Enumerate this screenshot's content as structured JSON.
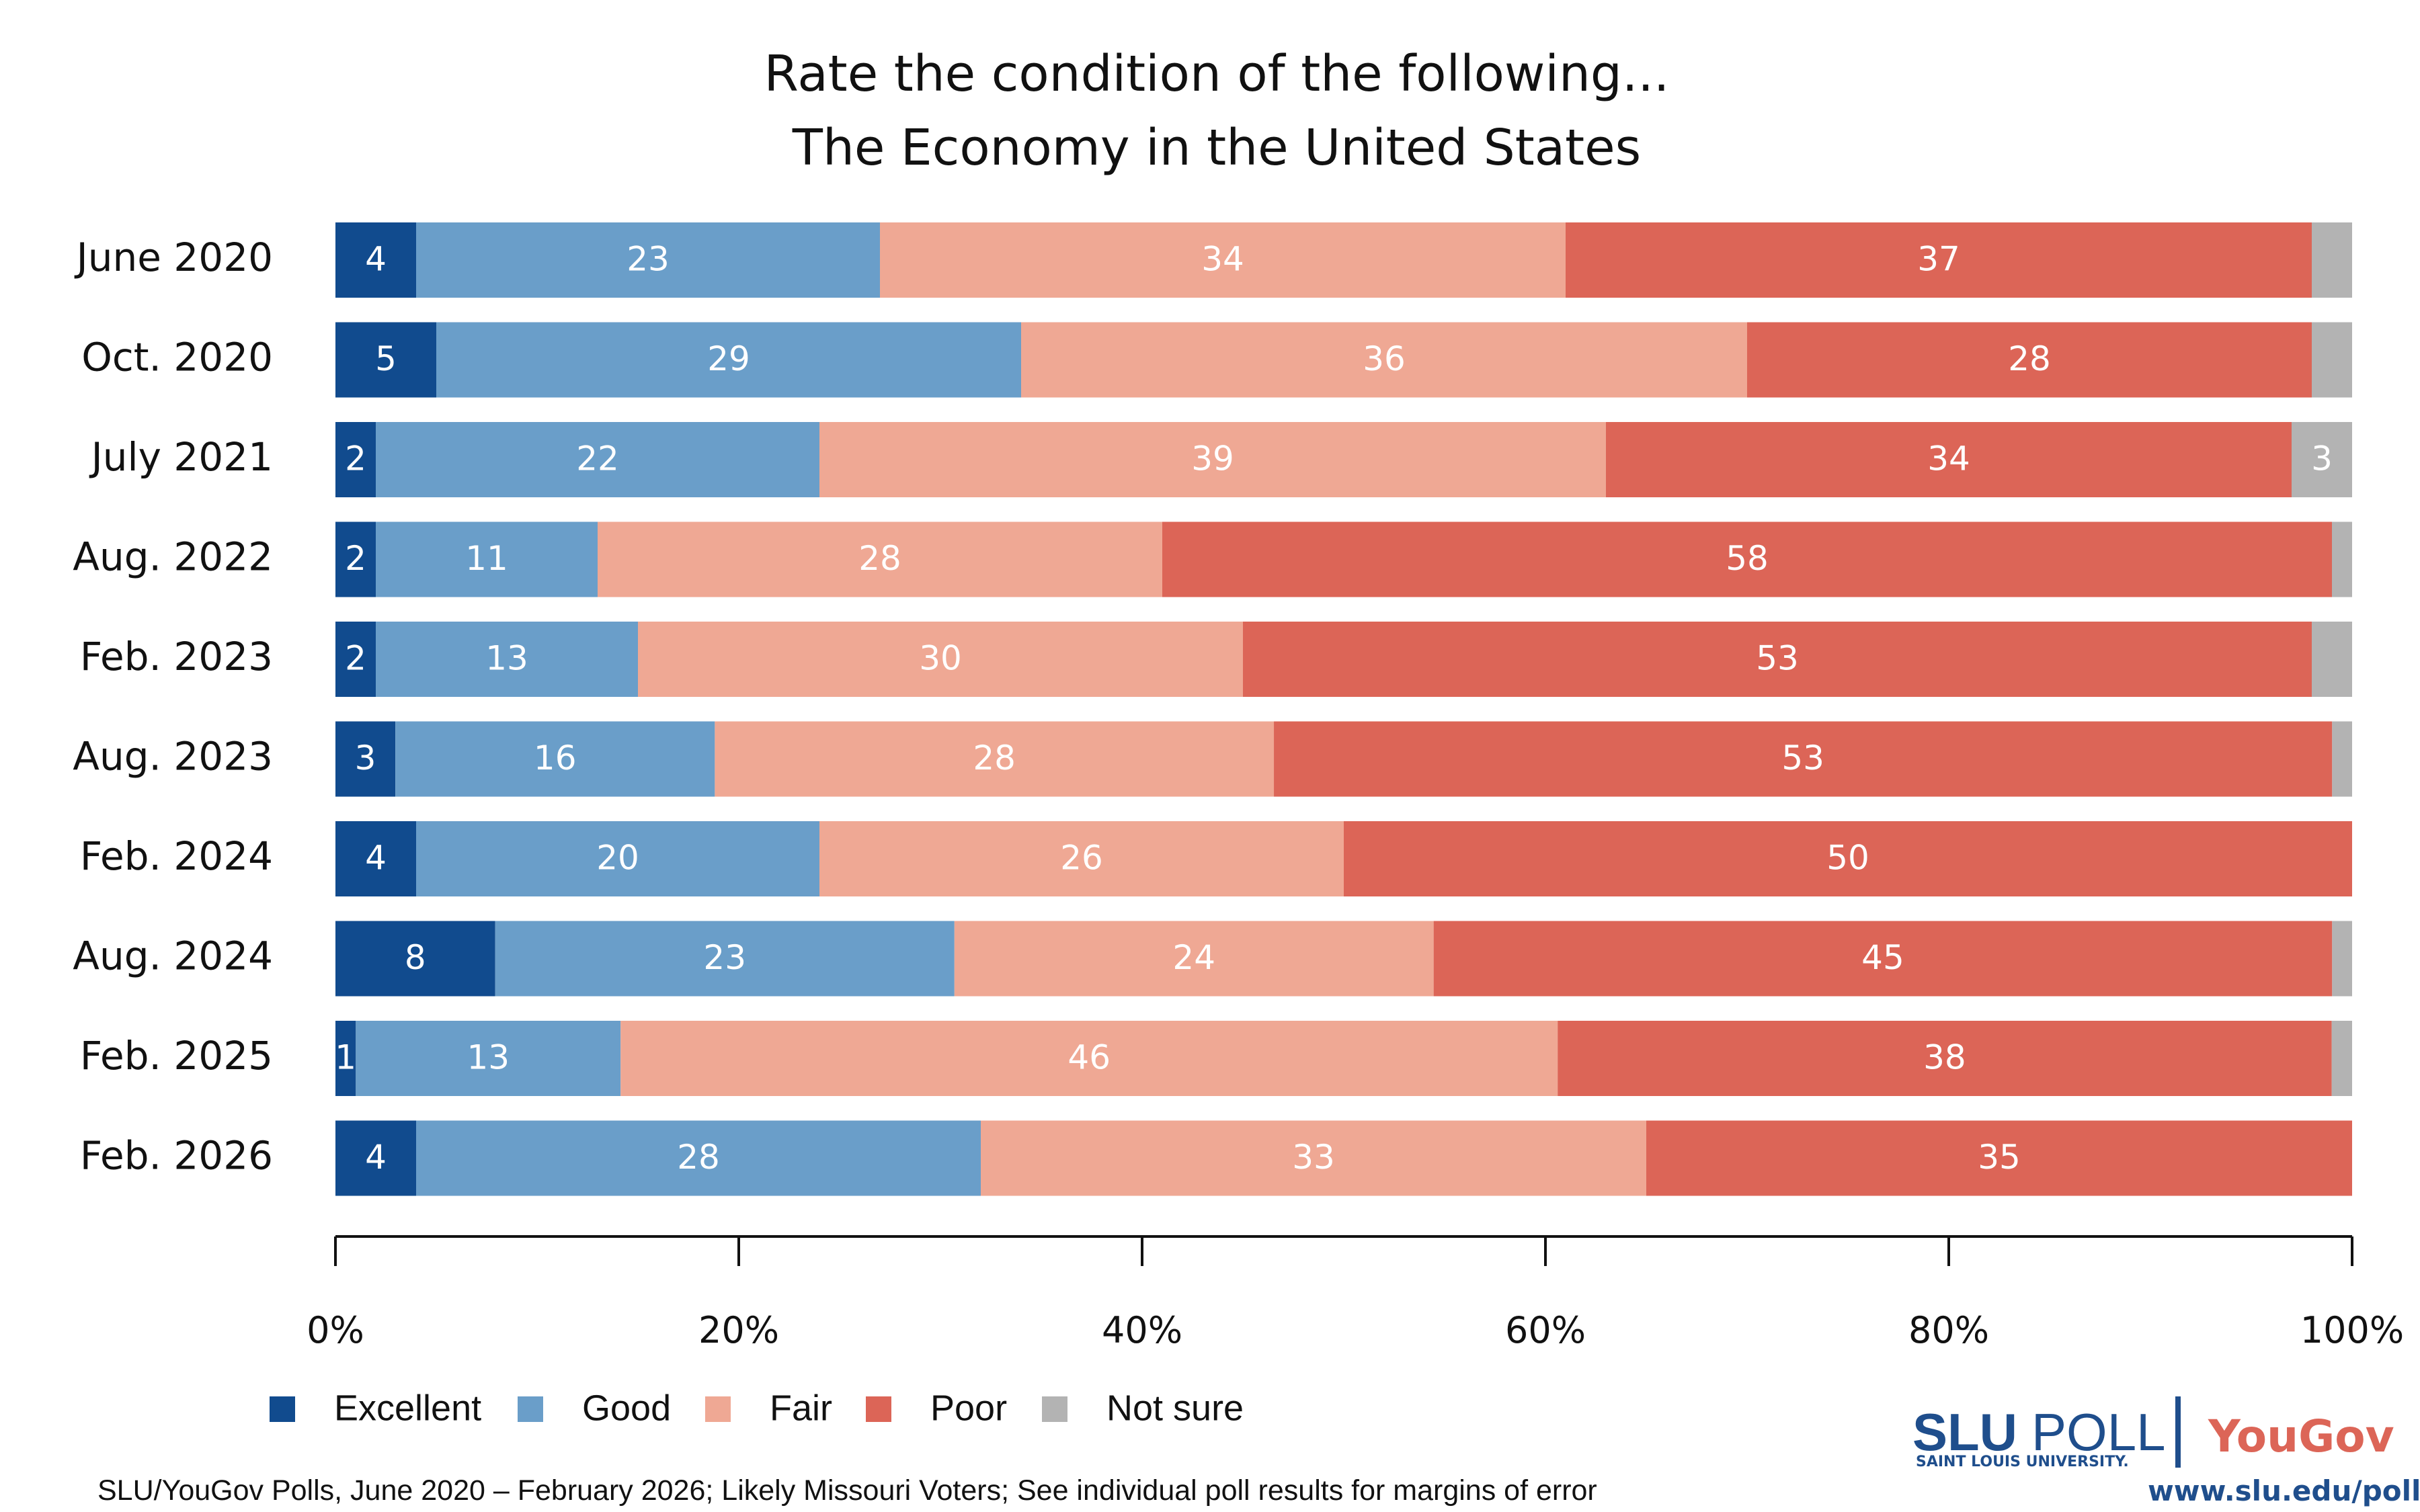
{
  "chart_data": {
    "type": "bar",
    "orientation": "horizontal",
    "stacked": true,
    "title": "Rate the condition of the following...",
    "subtitle": "The Economy in the United States",
    "categories": [
      "June 2020",
      "Oct. 2020",
      "July 2021",
      "Aug. 2022",
      "Feb. 2023",
      "Aug. 2023",
      "Feb. 2024",
      "Aug. 2024",
      "Feb. 2025",
      "Feb. 2026"
    ],
    "series": [
      {
        "name": "Excellent",
        "color": "#114b8e",
        "values": [
          4,
          5,
          2,
          2,
          2,
          3,
          4,
          8,
          1,
          4
        ]
      },
      {
        "name": "Good",
        "color": "#6a9ec9",
        "values": [
          23,
          29,
          22,
          11,
          13,
          16,
          20,
          23,
          13,
          28
        ]
      },
      {
        "name": "Fair",
        "color": "#efa894",
        "values": [
          34,
          36,
          39,
          28,
          30,
          28,
          26,
          24,
          46,
          33
        ]
      },
      {
        "name": "Poor",
        "color": "#dc6557",
        "values": [
          37,
          28,
          34,
          58,
          53,
          53,
          50,
          45,
          38,
          35
        ]
      },
      {
        "name": "Not sure",
        "color": "#b3b3b3",
        "values": [
          2,
          2,
          3,
          1,
          2,
          1,
          0,
          1,
          1,
          0
        ]
      }
    ],
    "label_min": 1,
    "notsure_labels": [
      false,
      false,
      true,
      false,
      false,
      false,
      false,
      false,
      false,
      false
    ],
    "xlim": [
      0,
      100
    ],
    "x_ticks": [
      "0%",
      "20%",
      "40%",
      "60%",
      "80%",
      "100%"
    ],
    "grid": false,
    "legend_position": "bottom-left"
  },
  "footnote": "SLU/YouGov Polls, June 2020 – February 2026; Likely Missouri Voters; See individual poll results for margins of error",
  "logo": {
    "slu": "SLU",
    "poll": "POLL",
    "university": "SAINT LOUIS UNIVERSITY.",
    "yougov": "YouGov",
    "url": "www.slu.edu/poll"
  }
}
